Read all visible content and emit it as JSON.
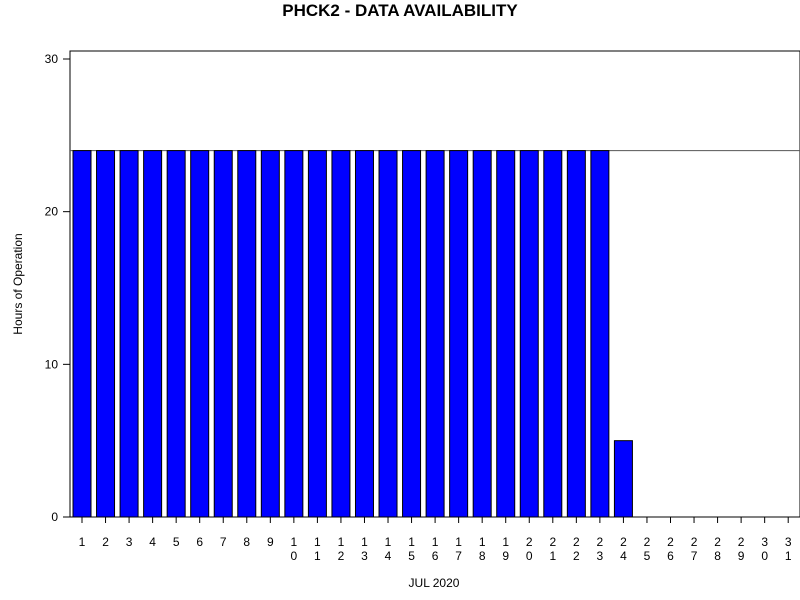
{
  "chart_data": {
    "type": "bar",
    "title": "PHCK2 - DATA AVAILABILITY",
    "xlabel": "JUL 2020",
    "ylabel": "Hours of Operation",
    "ylim": [
      0,
      30
    ],
    "yticks": [
      0,
      10,
      20,
      30
    ],
    "categories": [
      "1",
      "2",
      "3",
      "4",
      "5",
      "6",
      "7",
      "8",
      "9",
      "10",
      "11",
      "12",
      "13",
      "14",
      "15",
      "16",
      "17",
      "18",
      "19",
      "20",
      "21",
      "22",
      "23",
      "24",
      "25",
      "26",
      "27",
      "28",
      "29",
      "30",
      "31"
    ],
    "values": [
      24,
      24,
      24,
      24,
      24,
      24,
      24,
      24,
      24,
      24,
      24,
      24,
      24,
      24,
      24,
      24,
      24,
      24,
      24,
      24,
      24,
      24,
      24,
      5,
      0,
      0,
      0,
      0,
      0,
      0,
      0
    ],
    "reference_line": 24,
    "bar_color": "#0000ff",
    "grid": false,
    "legend": "none"
  }
}
